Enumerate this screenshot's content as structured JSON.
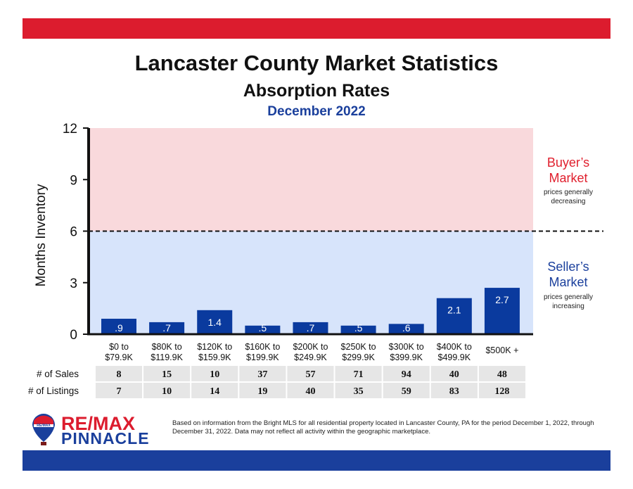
{
  "header": {
    "title": "Lancaster County Market Statistics",
    "subtitle": "Absorption Rates",
    "period": "December 2022"
  },
  "chart_data": {
    "type": "bar",
    "ylabel": "Months Inventory",
    "ylim": [
      0,
      12
    ],
    "yticks": [
      "0",
      "3",
      "6",
      "9",
      "12"
    ],
    "threshold": 6,
    "categories": [
      [
        "$0 to",
        "$79.9K"
      ],
      [
        "$80K to",
        "$119.9K"
      ],
      [
        "$120K to",
        "$159.9K"
      ],
      [
        "$160K to",
        "$199.9K"
      ],
      [
        "$200K to",
        "$249.9K"
      ],
      [
        "$250K to",
        "$299.9K"
      ],
      [
        "$300K to",
        "$399.9K"
      ],
      [
        "$400K to",
        "$499.9K"
      ],
      [
        "$500K +"
      ]
    ],
    "values": [
      0.9,
      0.7,
      1.4,
      0.5,
      0.7,
      0.5,
      0.6,
      2.1,
      2.7
    ],
    "data_labels": [
      ".9",
      ".7",
      "1.4",
      ".5",
      ".7",
      ".5",
      ".6",
      "2.1",
      "2.7"
    ],
    "colors": {
      "bar": "#0a3a9e",
      "buyer_zone": "#f9d9dc",
      "seller_zone": "#d7e4fb",
      "buyer_text": "#e0202e",
      "seller_text": "#1a3f9c"
    },
    "zones": {
      "buyer": {
        "title_line1": "Buyer’s",
        "title_line2": "Market",
        "note_line1": "prices generally",
        "note_line2": "decreasing"
      },
      "seller": {
        "title_line1": "Seller’s",
        "title_line2": "Market",
        "note_line1": "prices generally",
        "note_line2": "increasing"
      }
    }
  },
  "table": {
    "rows": [
      {
        "label": "# of Sales",
        "values": [
          "8",
          "15",
          "10",
          "37",
          "57",
          "71",
          "94",
          "40",
          "48"
        ]
      },
      {
        "label": "# of Listings",
        "values": [
          "7",
          "10",
          "14",
          "19",
          "40",
          "35",
          "59",
          "83",
          "128"
        ]
      }
    ]
  },
  "logo": {
    "line1": "RE/MAX",
    "line2": "PINNACLE",
    "balloon_text": "RE/MAX"
  },
  "footnote": "Based on information from the Bright MLS for all residential property located in Lancaster County, PA for the period December 1, 2022, through December 31, 2022.  Data may not reflect all activity within the geographic marketplace."
}
